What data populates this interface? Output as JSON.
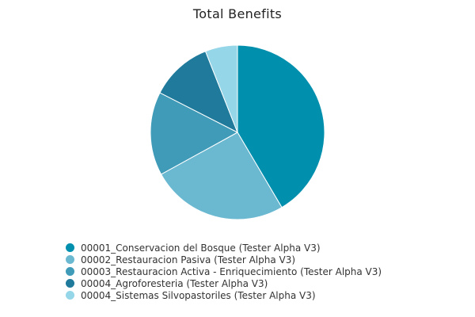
{
  "chart_data": {
    "type": "pie",
    "title": "Total Benefits",
    "legend_position": "bottom-left",
    "slices": [
      {
        "label": "00001_Conservacion del Bosque (Tester Alpha V3)",
        "value": 41.5,
        "color": "#0090AE"
      },
      {
        "label": "00002_Restauracion Pasiva (Tester Alpha V3)",
        "value": 25.5,
        "color": "#6BB8D1"
      },
      {
        "label": "00003_Restauracion Activa - Enriquecimiento (Tester Alpha V3)",
        "value": 15.5,
        "color": "#3F9BB8"
      },
      {
        "label": "00004_Agroforesteria (Tester Alpha V3)",
        "value": 11.5,
        "color": "#1F7A9B"
      },
      {
        "label": "00004_Sistemas Silvopastoriles (Tester Alpha V3)",
        "value": 6.0,
        "color": "#95D6E8"
      }
    ]
  }
}
